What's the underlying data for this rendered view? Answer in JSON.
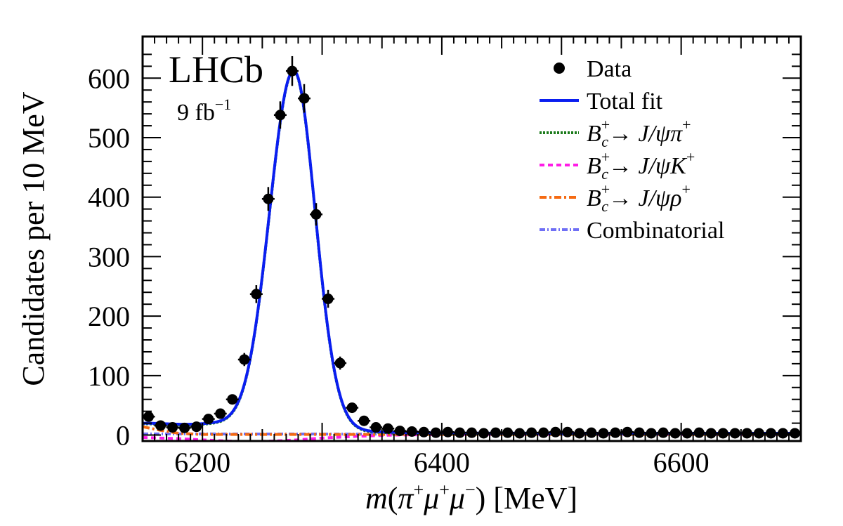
{
  "chart_data": {
    "type": "scatter",
    "title": "",
    "xlabel": "m(π⁺μ⁺μ⁻) [MeV]",
    "xlabel_parts": {
      "m": "m",
      "open": "(",
      "pi": "π",
      "mu1": "μ",
      "mu2": "μ",
      "plus": "+",
      "minus": "−",
      "close": ")",
      "unit": " [MeV]"
    },
    "ylabel": "Candidates per 10 MeV",
    "xlim": [
      6150,
      6700
    ],
    "ylim": [
      -10,
      670
    ],
    "x_ticks": [
      6200,
      6400,
      6600
    ],
    "x_tick_labels": [
      "6200",
      "6400",
      "6600"
    ],
    "y_ticks": [
      0,
      100,
      200,
      300,
      400,
      500,
      600
    ],
    "y_tick_labels": [
      "0",
      "100",
      "200",
      "300",
      "400",
      "500",
      "600"
    ],
    "watermark": {
      "experiment": "LHCb",
      "lumi_prefix": "9 fb",
      "lumi_exp": "−1"
    },
    "legend": {
      "position": "top-right",
      "data_label": "Data",
      "total_label": "Total fit",
      "decay_prefix": "B",
      "decay_sup": "+",
      "decay_sub": "c",
      "arrow": "→",
      "pi_label": " J/ψπ",
      "k_label": " J/ψK",
      "rho_label": " J/ψρ",
      "plus_sign": "+",
      "combinatorial_label": "Combinatorial"
    },
    "colors": {
      "data": "#000000",
      "total_fit": "#0a1ef0",
      "jpsi_pi": "#1b7a1b",
      "jpsi_k": "#ff1de6",
      "jpsi_rho": "#f56a12",
      "combinatorial": "#6f6ff5"
    },
    "data_points": {
      "x": [
        6155,
        6165,
        6175,
        6185,
        6195,
        6205,
        6215,
        6225,
        6235,
        6245,
        6255,
        6265,
        6275,
        6285,
        6295,
        6305,
        6315,
        6325,
        6335,
        6345,
        6355,
        6365,
        6375,
        6385,
        6395,
        6405,
        6415,
        6425,
        6435,
        6445,
        6455,
        6465,
        6475,
        6485,
        6495,
        6505,
        6515,
        6525,
        6535,
        6545,
        6555,
        6565,
        6575,
        6585,
        6595,
        6605,
        6615,
        6625,
        6635,
        6645,
        6655,
        6665,
        6675,
        6685,
        6695
      ],
      "y": [
        31,
        16,
        13,
        12,
        14,
        27,
        36,
        60,
        127,
        237,
        397,
        538,
        612,
        566,
        371,
        229,
        121,
        46,
        24,
        13,
        11,
        7,
        6,
        5,
        4,
        5,
        4,
        4,
        3,
        4,
        4,
        3,
        4,
        4,
        5,
        5,
        3,
        4,
        3,
        4,
        5,
        4,
        3,
        4,
        3,
        3,
        4,
        3,
        3,
        3,
        3,
        3,
        3,
        3,
        3
      ],
      "yerr": [
        6,
        4,
        4,
        4,
        4,
        5,
        6,
        8,
        11,
        15,
        20,
        23,
        25,
        24,
        19,
        15,
        11,
        7,
        5,
        4,
        3,
        3,
        2,
        2,
        2,
        2,
        2,
        2,
        2,
        2,
        2,
        2,
        2,
        2,
        2,
        2,
        2,
        2,
        2,
        2,
        2,
        2,
        2,
        2,
        2,
        2,
        2,
        2,
        2,
        2,
        2,
        2,
        2,
        2,
        2
      ]
    },
    "components": {
      "jpsi_pi": {
        "peak_mean": 6276,
        "peak_amplitude": 608,
        "sigma_left": 20,
        "sigma_right": 18,
        "tail_level": 17,
        "tail_end": 6225
      },
      "total_fit": {
        "offset_above_pi": 1
      },
      "jpsi_k": {
        "x": [
          6150,
          6180,
          6200,
          6220,
          6240,
          6260,
          6280,
          6300,
          6330,
          6360,
          6400,
          6500,
          6600,
          6700
        ],
        "y": [
          -4,
          -6,
          -8,
          -10,
          -11,
          -10,
          -8,
          -5,
          -2,
          0,
          1,
          1,
          1,
          1
        ]
      },
      "jpsi_rho": {
        "x": [
          6150,
          6165,
          6180,
          6200,
          6220,
          6250,
          6300,
          6400,
          6500,
          6600,
          6700
        ],
        "y": [
          14,
          8,
          3,
          1,
          1,
          1,
          1,
          1,
          1,
          1,
          1
        ]
      },
      "combinatorial": {
        "x": [
          6150,
          6700
        ],
        "y": [
          2,
          1
        ]
      }
    }
  }
}
